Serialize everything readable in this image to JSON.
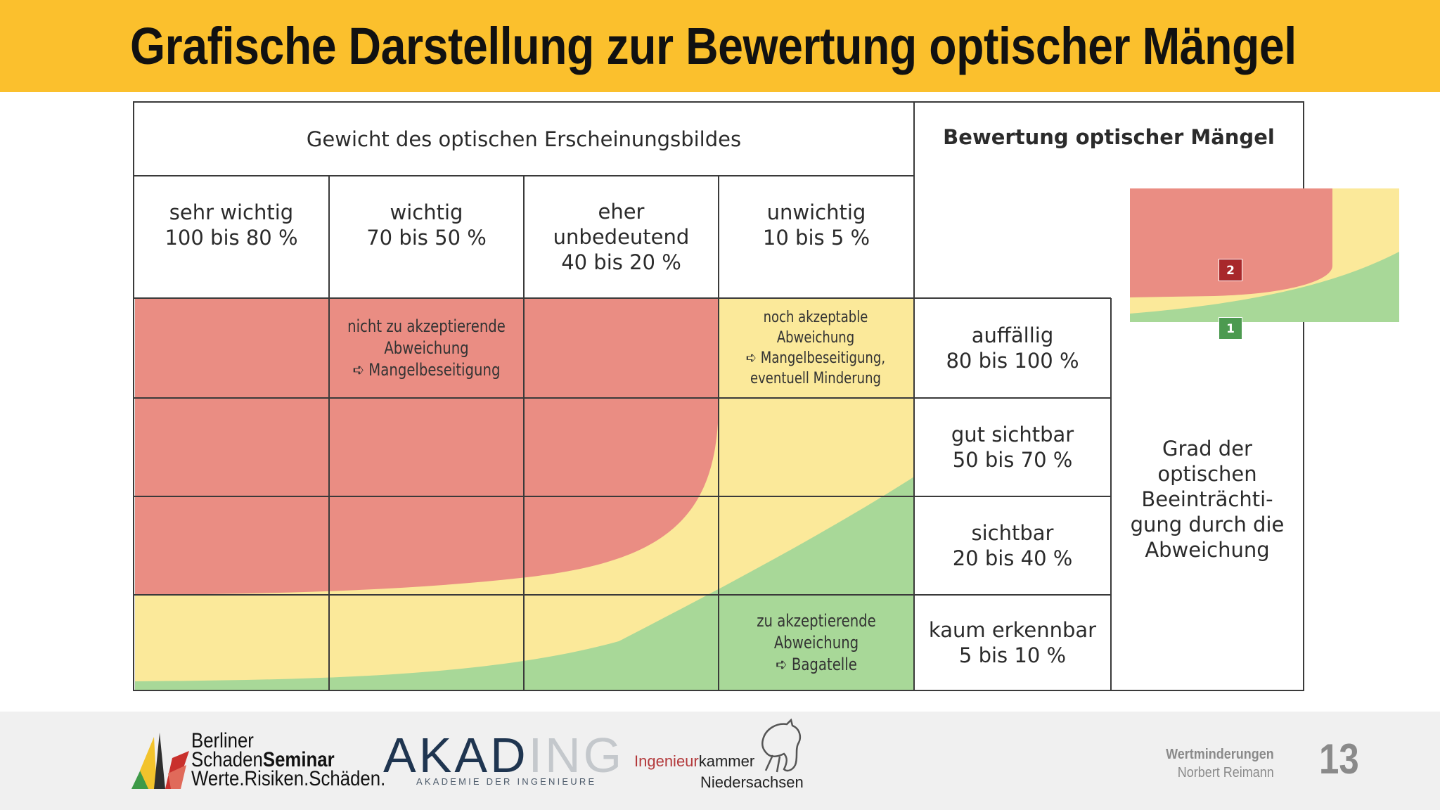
{
  "slide": {
    "title": "Grafische Darstellung zur Bewertung optischer Mängel",
    "page_number": "13"
  },
  "table": {
    "weight_header": "Gewicht des optischen Erscheinungsbildes",
    "rating_header": "Bewertung optischer Mängel",
    "weight_columns": [
      {
        "label": "sehr wichtig\n100 bis 80 %"
      },
      {
        "label": "wichtig\n70 bis 50 %"
      },
      {
        "label": "eher\nunbedeutend\n40 bis 20 %"
      },
      {
        "label": "unwichtig\n10 bis 5 %"
      }
    ],
    "visibility_rows": [
      {
        "label": "auffällig\n80 bis 100 %"
      },
      {
        "label": "gut sichtbar\n50 bis 70 %"
      },
      {
        "label": "sichtbar\n20 bis 40 %"
      },
      {
        "label": "kaum erkennbar\n5 bis 10 %"
      }
    ],
    "impairment_label": "Grad der\noptischen\nBeeinträchti-\ngung durch die\nAbweichung"
  },
  "zones": {
    "red": {
      "text": "nicht zu akzeptierende\nAbweichung\n➪ Mangelbeseitigung",
      "color": "#ea8d83"
    },
    "yellow": {
      "text": "noch akzeptable\nAbweichung\n➪ Mangelbeseitigung,\neventuell Minderung",
      "color": "#fbe99a"
    },
    "green": {
      "text": "zu akzeptierende\nAbweichung\n➪ Bagatelle",
      "color": "#a8d898"
    }
  },
  "legend": {
    "badge_red": "2",
    "badge_green": "1",
    "badge_red_color": "#a8282b",
    "badge_green_color": "#4c9a50"
  },
  "footer": {
    "bss_line1": "Berliner",
    "bss_line2a": "Schaden",
    "bss_line2b": "Seminar",
    "bss_line3": "Werte.Risiken.Schäden.",
    "akad_dark": "AKAD",
    "akad_light": "ING",
    "akad_sub": "AKADEMIE DER INGENIEURE",
    "ik_red": "Ingenieur",
    "ik_dark": "kammer",
    "ik_line2": "Niedersachsen",
    "topic": "Wertminderungen",
    "author": "Norbert Reimann"
  },
  "colors": {
    "title_band": "#fbc02d",
    "grid_line": "#3a3a3a"
  }
}
